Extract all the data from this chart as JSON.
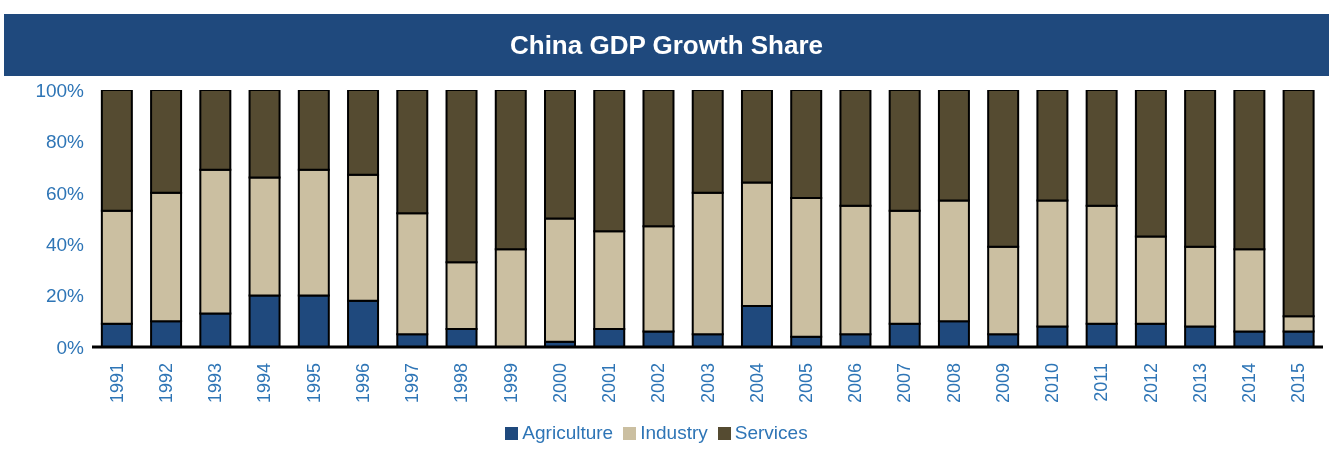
{
  "chart_data": {
    "type": "bar",
    "title": "China GDP Growth Share",
    "stacked": true,
    "legend": "bottom",
    "grid": false,
    "categories": [
      "1991",
      "1992",
      "1993",
      "1994",
      "1995",
      "1996",
      "1997",
      "1998",
      "1999",
      "2000",
      "2001",
      "2002",
      "2003",
      "2004",
      "2005",
      "2006",
      "2007",
      "2008",
      "2009",
      "2010",
      "2011",
      "2012",
      "2013",
      "2014",
      "2015"
    ],
    "series": [
      {
        "name": "Agriculture",
        "color": "#1f497d",
        "values": [
          9,
          10,
          13,
          20,
          20,
          18,
          5,
          7,
          0,
          2,
          7,
          6,
          5,
          16,
          4,
          5,
          9,
          10,
          5,
          8,
          9,
          9,
          8,
          6,
          6
        ]
      },
      {
        "name": "Industry",
        "color": "#cbbfa1",
        "values": [
          44,
          50,
          56,
          46,
          49,
          49,
          47,
          26,
          38,
          48,
          38,
          41,
          55,
          48,
          54,
          50,
          44,
          47,
          34,
          49,
          46,
          34,
          31,
          32,
          6
        ]
      },
      {
        "name": "Services",
        "color": "#554b31",
        "values": [
          47,
          40,
          31,
          34,
          31,
          33,
          48,
          67,
          62,
          50,
          55,
          53,
          40,
          36,
          42,
          45,
          47,
          43,
          61,
          43,
          45,
          57,
          61,
          62,
          88
        ]
      }
    ],
    "ylim": [
      0,
      100
    ],
    "yticks": [
      {
        "value": 0,
        "label": "0%"
      },
      {
        "value": 20,
        "label": "20%"
      },
      {
        "value": 40,
        "label": "40%"
      },
      {
        "value": 60,
        "label": "60%"
      },
      {
        "value": 80,
        "label": "80%"
      },
      {
        "value": 100,
        "label": "100%"
      }
    ]
  }
}
